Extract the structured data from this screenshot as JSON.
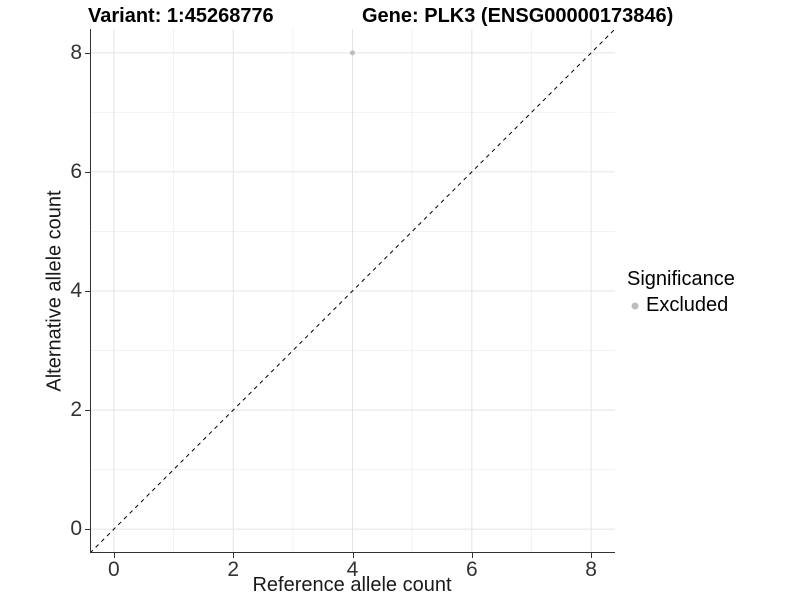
{
  "chart_data": {
    "type": "scatter",
    "title_variant": "Variant: 1:45268776",
    "title_gene": "Gene: PLK3 (ENSG00000173846)",
    "xlabel": "Reference allele count",
    "ylabel": "Alternative allele count",
    "xlim": [
      -0.4,
      8.4
    ],
    "ylim": [
      -0.4,
      8.4
    ],
    "x_ticks": [
      0,
      2,
      4,
      6,
      8
    ],
    "y_ticks": [
      0,
      2,
      4,
      6,
      8
    ],
    "grid": {
      "major": true,
      "minor": true
    },
    "reference_line": {
      "kind": "identity y=x",
      "style": "dashed",
      "color": "#000000",
      "from": [
        -0.4,
        -0.4
      ],
      "to": [
        8.4,
        8.4
      ]
    },
    "series": [
      {
        "name": "Excluded",
        "color": "#bdbdbd",
        "marker": "circle",
        "marker_radius": 2.5,
        "points": [
          {
            "x": 4,
            "y": 8
          }
        ]
      }
    ],
    "legend": {
      "title": "Significance",
      "position": "right",
      "entries": [
        {
          "label": "Excluded",
          "color": "#bdbdbd"
        }
      ]
    },
    "colors": {
      "axis": "#333333",
      "grid_major": "#e4e4e4",
      "grid_minor": "#f2f2f2",
      "tick_text": "#333333",
      "title_text": "#000000"
    }
  }
}
